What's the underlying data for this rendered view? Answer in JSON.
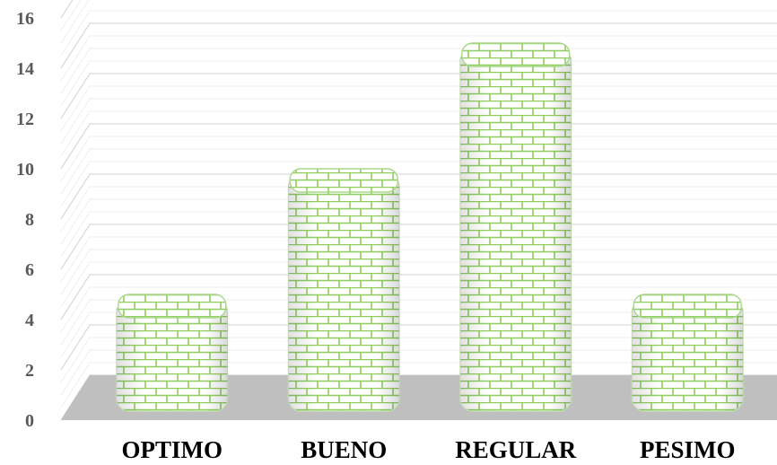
{
  "chart_data": {
    "type": "bar",
    "categories": [
      "OPTIMO",
      "BUENO",
      "REGULAR",
      "PESIMO"
    ],
    "values": [
      5,
      10,
      15,
      5
    ],
    "ylim": [
      0,
      16
    ],
    "yticks": [
      "0",
      "2",
      "4",
      "6",
      "8",
      "10",
      "12",
      "14",
      "16"
    ],
    "grid": true,
    "style": "3d-bar-brick-pattern",
    "colors": {
      "bar_fill": "#ffffff",
      "brick_line": "#8fce5f",
      "floor": "#bfbfbf",
      "grid": "#d9d9d9"
    }
  }
}
